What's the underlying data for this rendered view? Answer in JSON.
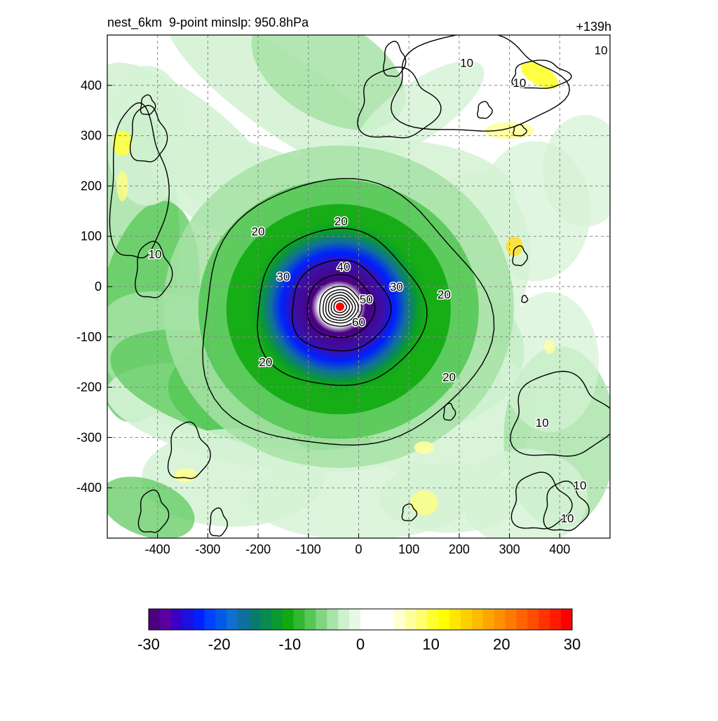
{
  "chart_data": {
    "type": "heatmap",
    "title_left": "nest_6km  9-point minslp: 950.8hPa",
    "title_right": "+139h",
    "xlim": [
      -500,
      500
    ],
    "ylim": [
      -500,
      500
    ],
    "x_ticks": [
      -400,
      -300,
      -200,
      -100,
      0,
      100,
      200,
      300,
      400
    ],
    "y_ticks": [
      400,
      300,
      200,
      100,
      0,
      -100,
      -200,
      -300,
      -400
    ],
    "grid": true,
    "storm_center": {
      "x": -37,
      "y": -40,
      "marker_color": "#ff0000"
    },
    "contour_labels": [
      {
        "text": "10",
        "x": 482,
        "y": 470
      },
      {
        "text": "10",
        "x": 215,
        "y": 445
      },
      {
        "text": "10",
        "x": 320,
        "y": 405
      },
      {
        "text": "10",
        "x": -405,
        "y": 65
      },
      {
        "text": "10",
        "x": 365,
        "y": -270
      },
      {
        "text": "10",
        "x": 440,
        "y": -395
      },
      {
        "text": "10",
        "x": 415,
        "y": -460
      },
      {
        "text": "20",
        "x": -200,
        "y": 110
      },
      {
        "text": "20",
        "x": -35,
        "y": 130
      },
      {
        "text": "20",
        "x": 170,
        "y": -15
      },
      {
        "text": "20",
        "x": -185,
        "y": -150
      },
      {
        "text": "20",
        "x": 180,
        "y": -180
      },
      {
        "text": "30",
        "x": -150,
        "y": 20
      },
      {
        "text": "30",
        "x": 75,
        "y": 0
      },
      {
        "text": "40",
        "x": -30,
        "y": 40
      },
      {
        "text": "50",
        "x": 15,
        "y": -25
      },
      {
        "text": "60",
        "x": 0,
        "y": -70
      }
    ],
    "colorbar": {
      "min": -30,
      "max": 30,
      "tick_labels": [
        "-30",
        "-20",
        "-10",
        "0",
        "10",
        "20",
        "30"
      ],
      "colors": [
        "#4b0082",
        "#5a00a0",
        "#3a00c8",
        "#1a10e0",
        "#0020ff",
        "#0040ff",
        "#005ae8",
        "#1070d0",
        "#106ea0",
        "#0a7a70",
        "#088a50",
        "#0a9a30",
        "#10aa10",
        "#30b830",
        "#55c855",
        "#80d680",
        "#a8e4a8",
        "#cdf0cd",
        "#e6f8e6",
        "#ffffff",
        "#ffffff",
        "#ffffff",
        "#ffffd0",
        "#ffffa0",
        "#ffff70",
        "#ffff30",
        "#ffff00",
        "#ffe600",
        "#ffd000",
        "#ffbb00",
        "#ffa500",
        "#ff9000",
        "#ff7a00",
        "#ff6400",
        "#ff4d00",
        "#ff3300",
        "#ff1a00",
        "#ff0000"
      ]
    }
  }
}
